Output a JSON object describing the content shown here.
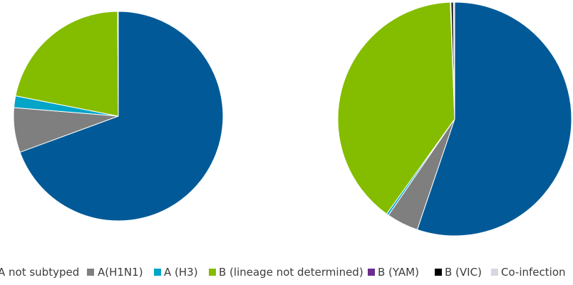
{
  "chart_data": [
    {
      "type": "pie",
      "start_angle_deg": 0,
      "direction": "clockwise",
      "slices": [
        {
          "label": "A not subtyped",
          "value": 69.4,
          "color": "#015a97"
        },
        {
          "label": "A(H1N1)",
          "value": 6.9,
          "color": "#7f7f7f"
        },
        {
          "label": "A (H3)",
          "value": 1.8,
          "color": "#00a5c8"
        },
        {
          "label": "B (lineage not determined)",
          "value": 21.8,
          "color": "#84bc00"
        },
        {
          "label": "B (YAM)",
          "value": 0.0,
          "color": "#6b2c8f"
        },
        {
          "label": "B (VIC)",
          "value": 0.0,
          "color": "#000000"
        },
        {
          "label": "Co-infection",
          "value": 0.1,
          "color": "#d4d8e0"
        }
      ]
    },
    {
      "type": "pie",
      "start_angle_deg": 0,
      "direction": "clockwise",
      "slices": [
        {
          "label": "A not subtyped",
          "value": 55.2,
          "color": "#015a97"
        },
        {
          "label": "A(H1N1)",
          "value": 4.4,
          "color": "#7f7f7f"
        },
        {
          "label": "A (H3)",
          "value": 0.3,
          "color": "#00a5c8"
        },
        {
          "label": "B (lineage not determined)",
          "value": 39.5,
          "color": "#84bc00"
        },
        {
          "label": "B (YAM)",
          "value": 0.1,
          "color": "#6b2c8f"
        },
        {
          "label": "B (VIC)",
          "value": 0.3,
          "color": "#000000"
        },
        {
          "label": "Co-infection",
          "value": 0.2,
          "color": "#d4d8e0"
        }
      ]
    }
  ],
  "legend": {
    "placement": "bottom",
    "items": [
      {
        "label": "A not subtyped",
        "color": "#015a97"
      },
      {
        "label": "A(H1N1)",
        "color": "#7f7f7f"
      },
      {
        "label": "A (H3)",
        "color": "#00a5c8"
      },
      {
        "label": "B (lineage not determined)",
        "color": "#84bc00"
      },
      {
        "label": "B (YAM)",
        "color": "#6b2c8f"
      },
      {
        "label": "B (VIC)",
        "color": "#000000"
      },
      {
        "label": "Co-infection",
        "color": "#d4d8e0"
      }
    ]
  }
}
